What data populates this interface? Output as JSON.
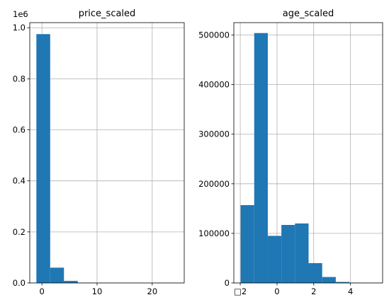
{
  "chart_data": [
    {
      "type": "bar",
      "title": "price_scaled",
      "xlabel": "",
      "ylabel": "",
      "offset_text": "1e6",
      "grid": true,
      "color": "#1f77b4",
      "xlim": [
        -2.2,
        25.8
      ],
      "ylim": [
        0,
        1.02
      ],
      "xticks": [
        0,
        10,
        20
      ],
      "xtick_labels": [
        "0",
        "10",
        "20"
      ],
      "yticks": [
        0.0,
        0.2,
        0.4,
        0.6,
        0.8,
        1.0
      ],
      "ytick_labels": [
        "0.0",
        "0.2",
        "0.4",
        "0.6",
        "0.8",
        "1.0"
      ],
      "bins": [
        {
          "x0": -1.0,
          "x1": 1.5,
          "value": 0.975
        },
        {
          "x0": 1.5,
          "x1": 4.0,
          "value": 0.06
        },
        {
          "x0": 4.0,
          "x1": 6.5,
          "value": 0.008
        },
        {
          "x0": 6.5,
          "x1": 9.0,
          "value": 0.001
        },
        {
          "x0": 9.0,
          "x1": 11.5,
          "value": 0.0003
        },
        {
          "x0": 11.5,
          "x1": 14.0,
          "value": 0.0001
        },
        {
          "x0": 14.0,
          "x1": 16.5,
          "value": 0.0001
        },
        {
          "x0": 16.5,
          "x1": 19.0,
          "value": 0.0
        },
        {
          "x0": 19.0,
          "x1": 21.5,
          "value": 0.0
        },
        {
          "x0": 21.5,
          "x1": 24.0,
          "value": 0.0
        }
      ]
    },
    {
      "type": "bar",
      "title": "age_scaled",
      "xlabel": "",
      "ylabel": "",
      "grid": true,
      "color": "#1f77b4",
      "xlim": [
        -2.35,
        5.75
      ],
      "ylim": [
        0,
        525000
      ],
      "xticks": [
        -2,
        0,
        2,
        4
      ],
      "xtick_labels": [
        "□2",
        "0",
        "2",
        "4"
      ],
      "yticks": [
        0,
        100000,
        200000,
        300000,
        400000,
        500000
      ],
      "ytick_labels": [
        "0",
        "100000",
        "200000",
        "300000",
        "400000",
        "500000"
      ],
      "bins": [
        {
          "x0": -1.98,
          "x1": -1.24,
          "value": 157000
        },
        {
          "x0": -1.24,
          "x1": -0.5,
          "value": 504000
        },
        {
          "x0": -0.5,
          "x1": 0.24,
          "value": 95000
        },
        {
          "x0": 0.24,
          "x1": 0.98,
          "value": 117000
        },
        {
          "x0": 0.98,
          "x1": 1.72,
          "value": 120000
        },
        {
          "x0": 1.72,
          "x1": 2.46,
          "value": 40000
        },
        {
          "x0": 2.46,
          "x1": 3.2,
          "value": 12000
        },
        {
          "x0": 3.2,
          "x1": 3.94,
          "value": 2000
        },
        {
          "x0": 3.94,
          "x1": 4.68,
          "value": 500
        },
        {
          "x0": 4.68,
          "x1": 5.42,
          "value": 100
        }
      ]
    }
  ]
}
